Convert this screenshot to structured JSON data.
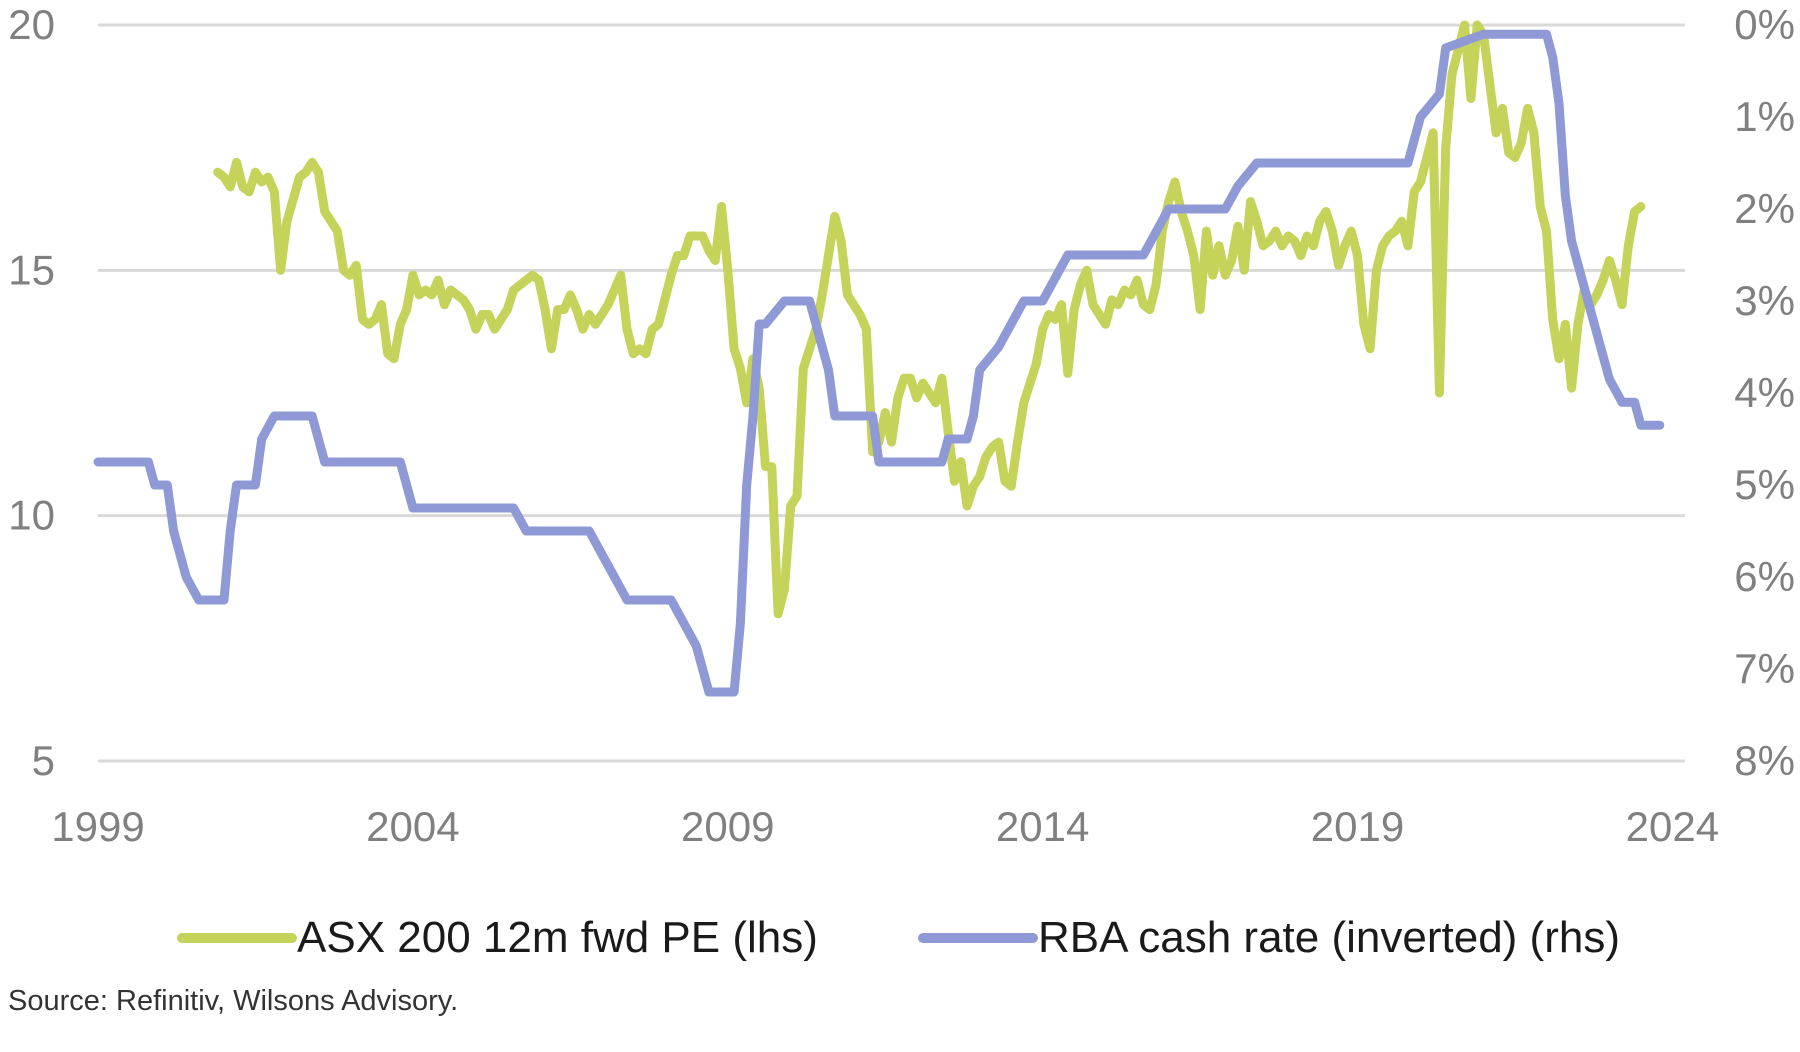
{
  "colors": {
    "pe": "#c5d35a",
    "rba": "#8e99d6",
    "grid": "#d9d9d9",
    "tick": "#808080"
  },
  "source": "Source: Refinitiv, Wilsons Advisory.",
  "chart_data": {
    "type": "line",
    "title": "",
    "xlabel": "",
    "ylabel_left": "",
    "ylabel_right": "",
    "xlim": [
      1999,
      2024.2
    ],
    "ylim_left": [
      5,
      20
    ],
    "ylim_right_inverted": [
      0,
      8
    ],
    "x_ticks": [
      "1999",
      "2004",
      "2009",
      "2014",
      "2019",
      "2024"
    ],
    "y_left_ticks": [
      "20",
      "15",
      "10",
      "5"
    ],
    "y_right_ticks": [
      "0%",
      "1%",
      "2%",
      "3%",
      "4%",
      "5%",
      "6%",
      "7%",
      "8%"
    ],
    "grid": true,
    "legend_position": "bottom",
    "series": [
      {
        "name": "ASX 200 12m fwd PE (lhs)",
        "axis": "left",
        "points": [
          [
            2000.9,
            17.0
          ],
          [
            2001.0,
            16.9
          ],
          [
            2001.1,
            16.7
          ],
          [
            2001.2,
            17.2
          ],
          [
            2001.3,
            16.7
          ],
          [
            2001.4,
            16.6
          ],
          [
            2001.5,
            17.0
          ],
          [
            2001.6,
            16.8
          ],
          [
            2001.7,
            16.9
          ],
          [
            2001.8,
            16.6
          ],
          [
            2001.9,
            15.0
          ],
          [
            2002.0,
            16.0
          ],
          [
            2002.2,
            16.9
          ],
          [
            2002.3,
            17.0
          ],
          [
            2002.4,
            17.2
          ],
          [
            2002.5,
            17.0
          ],
          [
            2002.6,
            16.2
          ],
          [
            2002.7,
            16.0
          ],
          [
            2002.8,
            15.8
          ],
          [
            2002.9,
            15.0
          ],
          [
            2003.0,
            14.9
          ],
          [
            2003.1,
            15.1
          ],
          [
            2003.2,
            14.0
          ],
          [
            2003.3,
            13.9
          ],
          [
            2003.4,
            14.0
          ],
          [
            2003.5,
            14.3
          ],
          [
            2003.6,
            13.3
          ],
          [
            2003.7,
            13.2
          ],
          [
            2003.8,
            13.9
          ],
          [
            2003.9,
            14.2
          ],
          [
            2004.0,
            14.9
          ],
          [
            2004.1,
            14.5
          ],
          [
            2004.2,
            14.6
          ],
          [
            2004.3,
            14.5
          ],
          [
            2004.4,
            14.8
          ],
          [
            2004.5,
            14.3
          ],
          [
            2004.6,
            14.6
          ],
          [
            2004.7,
            14.5
          ],
          [
            2004.8,
            14.4
          ],
          [
            2004.9,
            14.2
          ],
          [
            2005.0,
            13.8
          ],
          [
            2005.1,
            14.1
          ],
          [
            2005.2,
            14.1
          ],
          [
            2005.3,
            13.8
          ],
          [
            2005.4,
            14.0
          ],
          [
            2005.5,
            14.2
          ],
          [
            2005.6,
            14.6
          ],
          [
            2005.7,
            14.7
          ],
          [
            2005.8,
            14.8
          ],
          [
            2005.9,
            14.9
          ],
          [
            2006.0,
            14.8
          ],
          [
            2006.1,
            14.2
          ],
          [
            2006.2,
            13.4
          ],
          [
            2006.3,
            14.2
          ],
          [
            2006.4,
            14.2
          ],
          [
            2006.5,
            14.5
          ],
          [
            2006.6,
            14.2
          ],
          [
            2006.7,
            13.8
          ],
          [
            2006.8,
            14.1
          ],
          [
            2006.9,
            13.9
          ],
          [
            2007.0,
            14.1
          ],
          [
            2007.1,
            14.3
          ],
          [
            2007.2,
            14.6
          ],
          [
            2007.3,
            14.9
          ],
          [
            2007.4,
            13.8
          ],
          [
            2007.5,
            13.3
          ],
          [
            2007.6,
            13.4
          ],
          [
            2007.7,
            13.3
          ],
          [
            2007.8,
            13.8
          ],
          [
            2007.9,
            13.9
          ],
          [
            2008.0,
            14.4
          ],
          [
            2008.1,
            14.9
          ],
          [
            2008.2,
            15.3
          ],
          [
            2008.3,
            15.3
          ],
          [
            2008.4,
            15.7
          ],
          [
            2008.6,
            15.7
          ],
          [
            2008.7,
            15.4
          ],
          [
            2008.8,
            15.2
          ],
          [
            2008.9,
            16.3
          ],
          [
            2009.0,
            15.0
          ],
          [
            2009.1,
            13.4
          ],
          [
            2009.2,
            13.0
          ],
          [
            2009.3,
            12.3
          ],
          [
            2009.4,
            13.2
          ],
          [
            2009.5,
            12.6
          ],
          [
            2009.6,
            11.0
          ],
          [
            2009.7,
            11.0
          ],
          [
            2009.8,
            8.0
          ],
          [
            2009.9,
            8.5
          ],
          [
            2010.0,
            10.2
          ],
          [
            2010.1,
            10.4
          ],
          [
            2010.2,
            13.0
          ],
          [
            2010.3,
            13.4
          ],
          [
            2010.4,
            13.8
          ],
          [
            2010.5,
            14.5
          ],
          [
            2010.6,
            15.3
          ],
          [
            2010.7,
            16.1
          ],
          [
            2010.8,
            15.6
          ],
          [
            2010.9,
            14.5
          ],
          [
            2011.0,
            14.3
          ],
          [
            2011.1,
            14.1
          ],
          [
            2011.2,
            13.8
          ],
          [
            2011.3,
            11.3
          ],
          [
            2011.4,
            11.5
          ],
          [
            2011.5,
            12.1
          ],
          [
            2011.6,
            11.5
          ],
          [
            2011.7,
            12.4
          ],
          [
            2011.8,
            12.8
          ],
          [
            2011.9,
            12.8
          ],
          [
            2012.0,
            12.4
          ],
          [
            2012.1,
            12.7
          ],
          [
            2012.2,
            12.5
          ],
          [
            2012.3,
            12.3
          ],
          [
            2012.4,
            12.8
          ],
          [
            2012.5,
            11.7
          ],
          [
            2012.6,
            10.7
          ],
          [
            2012.7,
            11.1
          ],
          [
            2012.8,
            10.2
          ],
          [
            2012.9,
            10.6
          ],
          [
            2013.0,
            10.8
          ],
          [
            2013.1,
            11.2
          ],
          [
            2013.2,
            11.4
          ],
          [
            2013.3,
            11.5
          ],
          [
            2013.4,
            10.7
          ],
          [
            2013.5,
            10.6
          ],
          [
            2013.6,
            11.5
          ],
          [
            2013.7,
            12.3
          ],
          [
            2013.8,
            12.7
          ],
          [
            2013.9,
            13.1
          ],
          [
            2014.0,
            13.8
          ],
          [
            2014.1,
            14.1
          ],
          [
            2014.2,
            14.0
          ],
          [
            2014.3,
            14.3
          ],
          [
            2014.4,
            12.9
          ],
          [
            2014.5,
            14.2
          ],
          [
            2014.6,
            14.7
          ],
          [
            2014.7,
            15.0
          ],
          [
            2014.8,
            14.3
          ],
          [
            2014.9,
            14.1
          ],
          [
            2015.0,
            13.9
          ],
          [
            2015.1,
            14.4
          ],
          [
            2015.2,
            14.3
          ],
          [
            2015.3,
            14.6
          ],
          [
            2015.4,
            14.5
          ],
          [
            2015.5,
            14.8
          ],
          [
            2015.6,
            14.3
          ],
          [
            2015.7,
            14.2
          ],
          [
            2015.8,
            14.7
          ],
          [
            2015.9,
            15.8
          ],
          [
            2016.0,
            16.4
          ],
          [
            2016.1,
            16.8
          ],
          [
            2016.2,
            16.2
          ],
          [
            2016.3,
            15.8
          ],
          [
            2016.4,
            15.3
          ],
          [
            2016.5,
            14.2
          ],
          [
            2016.6,
            15.8
          ],
          [
            2016.7,
            14.9
          ],
          [
            2016.8,
            15.5
          ],
          [
            2016.9,
            14.9
          ],
          [
            2017.0,
            15.2
          ],
          [
            2017.1,
            15.9
          ],
          [
            2017.2,
            15.0
          ],
          [
            2017.3,
            16.4
          ],
          [
            2017.4,
            16.0
          ],
          [
            2017.5,
            15.5
          ],
          [
            2017.6,
            15.6
          ],
          [
            2017.7,
            15.8
          ],
          [
            2017.8,
            15.5
          ],
          [
            2017.9,
            15.7
          ],
          [
            2018.0,
            15.6
          ],
          [
            2018.1,
            15.3
          ],
          [
            2018.2,
            15.7
          ],
          [
            2018.3,
            15.5
          ],
          [
            2018.4,
            16.0
          ],
          [
            2018.5,
            16.2
          ],
          [
            2018.6,
            15.8
          ],
          [
            2018.7,
            15.1
          ],
          [
            2018.8,
            15.5
          ],
          [
            2018.9,
            15.8
          ],
          [
            2019.0,
            15.3
          ],
          [
            2019.1,
            13.9
          ],
          [
            2019.2,
            13.4
          ],
          [
            2019.3,
            15.0
          ],
          [
            2019.4,
            15.5
          ],
          [
            2019.5,
            15.7
          ],
          [
            2019.6,
            15.8
          ],
          [
            2019.7,
            16.0
          ],
          [
            2019.8,
            15.5
          ],
          [
            2019.9,
            16.6
          ],
          [
            2020.0,
            16.8
          ],
          [
            2020.1,
            17.3
          ],
          [
            2020.2,
            17.8
          ],
          [
            2020.3,
            12.5
          ],
          [
            2020.4,
            17.5
          ],
          [
            2020.5,
            19.0
          ],
          [
            2020.6,
            19.5
          ],
          [
            2020.7,
            20.0
          ],
          [
            2020.8,
            18.5
          ],
          [
            2020.9,
            20.0
          ],
          [
            2021.0,
            19.8
          ],
          [
            2021.1,
            18.8
          ],
          [
            2021.2,
            17.8
          ],
          [
            2021.3,
            18.3
          ],
          [
            2021.4,
            17.4
          ],
          [
            2021.5,
            17.3
          ],
          [
            2021.6,
            17.6
          ],
          [
            2021.7,
            18.3
          ],
          [
            2021.8,
            17.8
          ],
          [
            2021.9,
            16.3
          ],
          [
            2022.0,
            15.8
          ],
          [
            2022.1,
            14.0
          ],
          [
            2022.2,
            13.2
          ],
          [
            2022.3,
            13.9
          ],
          [
            2022.4,
            12.6
          ],
          [
            2022.5,
            13.9
          ],
          [
            2022.6,
            14.6
          ],
          [
            2022.7,
            14.3
          ],
          [
            2022.8,
            14.5
          ],
          [
            2022.9,
            14.8
          ],
          [
            2023.0,
            15.2
          ],
          [
            2023.1,
            14.8
          ],
          [
            2023.2,
            14.3
          ],
          [
            2023.3,
            15.5
          ],
          [
            2023.4,
            16.2
          ],
          [
            2023.5,
            16.3
          ]
        ]
      },
      {
        "name": "RBA cash rate (inverted) (rhs)",
        "axis": "right",
        "points": [
          [
            1999.0,
            4.75
          ],
          [
            1999.8,
            4.75
          ],
          [
            1999.9,
            5.0
          ],
          [
            2000.1,
            5.0
          ],
          [
            2000.2,
            5.5
          ],
          [
            2000.4,
            6.0
          ],
          [
            2000.6,
            6.25
          ],
          [
            2001.0,
            6.25
          ],
          [
            2001.1,
            5.5
          ],
          [
            2001.2,
            5.0
          ],
          [
            2001.5,
            5.0
          ],
          [
            2001.6,
            4.5
          ],
          [
            2001.8,
            4.25
          ],
          [
            2002.0,
            4.25
          ],
          [
            2002.4,
            4.25
          ],
          [
            2002.6,
            4.75
          ],
          [
            2003.8,
            4.75
          ],
          [
            2004.0,
            5.25
          ],
          [
            2005.6,
            5.25
          ],
          [
            2005.8,
            5.5
          ],
          [
            2006.8,
            5.5
          ],
          [
            2007.0,
            5.75
          ],
          [
            2007.2,
            6.0
          ],
          [
            2007.4,
            6.25
          ],
          [
            2008.1,
            6.25
          ],
          [
            2008.3,
            6.5
          ],
          [
            2008.5,
            6.75
          ],
          [
            2008.7,
            7.25
          ],
          [
            2009.1,
            7.25
          ],
          [
            2009.2,
            6.5
          ],
          [
            2009.3,
            5.0
          ],
          [
            2009.4,
            4.25
          ],
          [
            2009.5,
            3.25
          ],
          [
            2009.6,
            3.25
          ],
          [
            2009.9,
            3.0
          ],
          [
            2010.3,
            3.0
          ],
          [
            2010.5,
            3.5
          ],
          [
            2010.6,
            3.75
          ],
          [
            2010.7,
            4.25
          ],
          [
            2011.3,
            4.25
          ],
          [
            2011.4,
            4.75
          ],
          [
            2012.4,
            4.75
          ],
          [
            2012.5,
            4.5
          ],
          [
            2012.8,
            4.5
          ],
          [
            2012.9,
            4.25
          ],
          [
            2013.0,
            3.75
          ],
          [
            2013.3,
            3.5
          ],
          [
            2013.5,
            3.25
          ],
          [
            2013.7,
            3.0
          ],
          [
            2014.0,
            3.0
          ],
          [
            2014.2,
            2.75
          ],
          [
            2014.4,
            2.5
          ],
          [
            2015.6,
            2.5
          ],
          [
            2015.8,
            2.25
          ],
          [
            2016.0,
            2.0
          ],
          [
            2016.9,
            2.0
          ],
          [
            2017.1,
            1.75
          ],
          [
            2017.4,
            1.5
          ],
          [
            2019.8,
            1.5
          ],
          [
            2019.9,
            1.25
          ],
          [
            2020.0,
            1.0
          ],
          [
            2020.3,
            0.75
          ],
          [
            2020.4,
            0.25
          ],
          [
            2021.0,
            0.1
          ],
          [
            2022.0,
            0.1
          ],
          [
            2022.1,
            0.35
          ],
          [
            2022.2,
            0.85
          ],
          [
            2022.3,
            1.85
          ],
          [
            2022.4,
            2.35
          ],
          [
            2022.5,
            2.6
          ],
          [
            2022.6,
            2.85
          ],
          [
            2022.7,
            3.1
          ],
          [
            2022.8,
            3.35
          ],
          [
            2022.9,
            3.6
          ],
          [
            2023.0,
            3.85
          ],
          [
            2023.2,
            4.1
          ],
          [
            2023.4,
            4.1
          ],
          [
            2023.5,
            4.35
          ],
          [
            2023.8,
            4.35
          ]
        ]
      }
    ]
  }
}
